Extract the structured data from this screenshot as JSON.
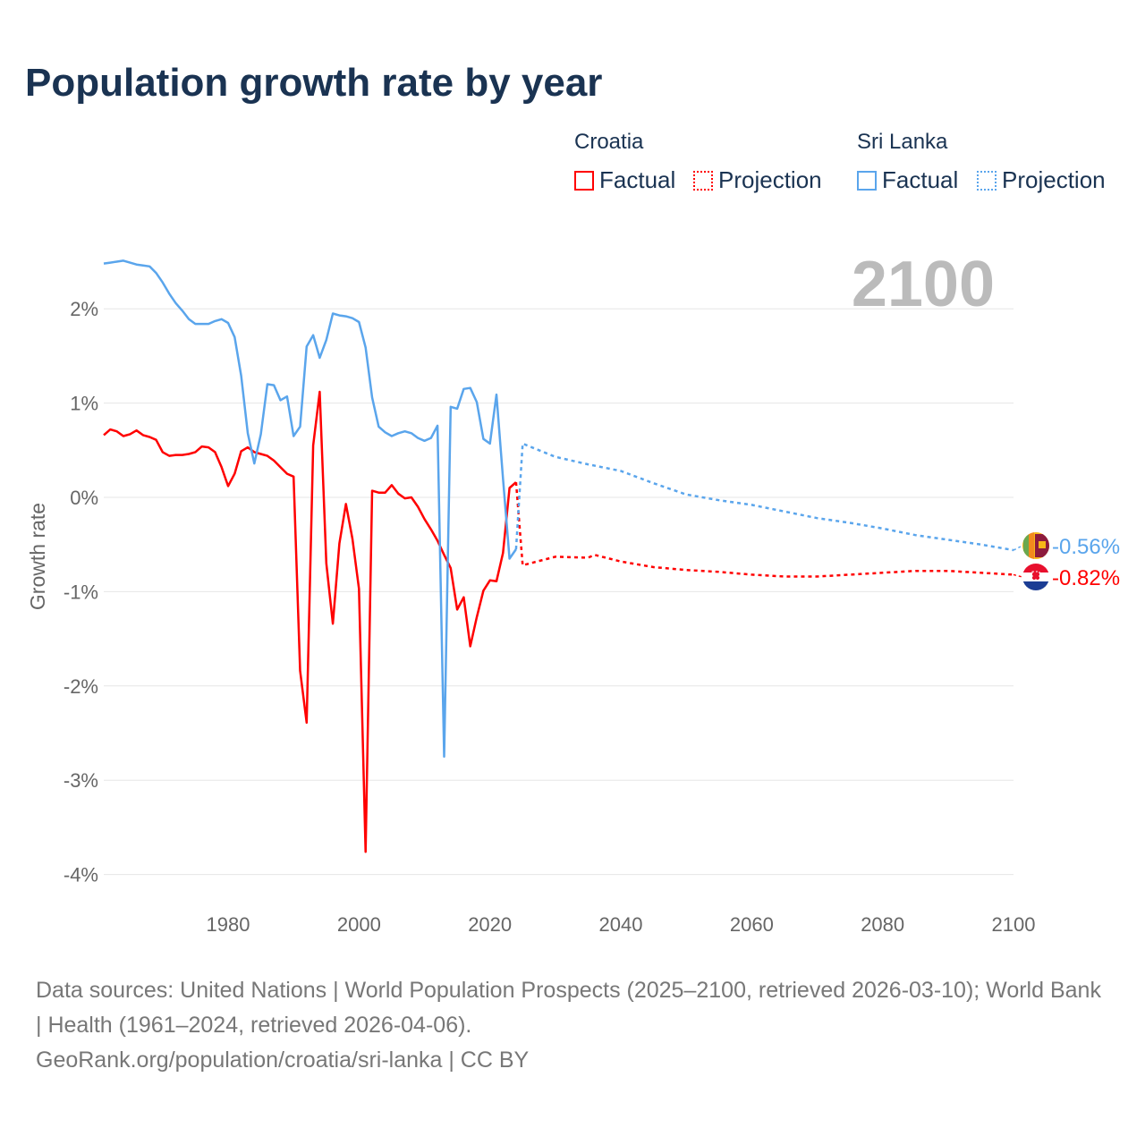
{
  "title": "Population growth rate by year",
  "legend": {
    "groups": [
      {
        "name": "Croatia",
        "color": "#ff0000",
        "factual": "Factual",
        "projection": "Projection"
      },
      {
        "name": "Sri Lanka",
        "color": "#5aa5ec",
        "factual": "Factual",
        "projection": "Projection"
      }
    ]
  },
  "year_label": "2100",
  "footer": {
    "sources": "Data sources: United Nations | World Population Prospects (2025–2100, retrieved 2026-03-10); World Bank | Health (1961–2024, retrieved 2026-04-06).",
    "credit": "GeoRank.org/population/croatia/sri-lanka | CC BY"
  },
  "chart_data": {
    "type": "line",
    "title": "Population growth rate by year",
    "xlabel": "",
    "ylabel": "Growth rate",
    "xlim": [
      1961,
      2100
    ],
    "ylim": [
      -4.3,
      2.5
    ],
    "xticks": [
      1980,
      2000,
      2020,
      2040,
      2060,
      2080,
      2100
    ],
    "yticks": [
      2,
      1,
      0,
      -1,
      -2,
      -3,
      -4
    ],
    "ytick_labels": [
      "2%",
      "1%",
      "0%",
      "-1%",
      "-2%",
      "-3%",
      "-4%"
    ],
    "grid": true,
    "legend_position": "top-right",
    "series": [
      {
        "name": "Croatia",
        "color": "#ff0000",
        "end_label": "-0.82%",
        "flag": "croatia-flag",
        "factual": {
          "x": [
            1961,
            1962,
            1963,
            1964,
            1965,
            1966,
            1967,
            1968,
            1969,
            1970,
            1971,
            1972,
            1973,
            1974,
            1975,
            1976,
            1977,
            1978,
            1979,
            1980,
            1981,
            1982,
            1983,
            1984,
            1985,
            1986,
            1987,
            1988,
            1989,
            1990,
            1991,
            1992,
            1993,
            1994,
            1995,
            1996,
            1997,
            1998,
            1999,
            2000,
            2001,
            2002,
            2003,
            2004,
            2005,
            2006,
            2007,
            2008,
            2009,
            2010,
            2011,
            2012,
            2013,
            2014,
            2015,
            2016,
            2017,
            2018,
            2019,
            2020,
            2021,
            2022,
            2023,
            2024
          ],
          "y": [
            0.66,
            0.72,
            0.7,
            0.65,
            0.67,
            0.71,
            0.66,
            0.64,
            0.61,
            0.48,
            0.44,
            0.45,
            0.45,
            0.46,
            0.48,
            0.54,
            0.53,
            0.48,
            0.32,
            0.12,
            0.25,
            0.49,
            0.53,
            0.48,
            0.46,
            0.44,
            0.39,
            0.32,
            0.25,
            0.22,
            -1.84,
            -2.39,
            0.55,
            1.12,
            -0.7,
            -1.34,
            -0.49,
            -0.07,
            -0.44,
            -0.97,
            -3.76,
            0.07,
            0.05,
            0.05,
            0.13,
            0.04,
            -0.01,
            0.0,
            -0.1,
            -0.23,
            -0.34,
            -0.46,
            -0.61,
            -0.75,
            -1.19,
            -1.06,
            -1.58,
            -1.27,
            -0.99,
            -0.88,
            -0.89,
            -0.59,
            0.1,
            0.16
          ]
        },
        "projection": {
          "x": [
            2024,
            2025,
            2030,
            2035,
            2036,
            2040,
            2045,
            2050,
            2055,
            2060,
            2065,
            2070,
            2075,
            2080,
            2085,
            2090,
            2095,
            2100
          ],
          "y": [
            0.16,
            -0.72,
            -0.63,
            -0.64,
            -0.61,
            -0.68,
            -0.74,
            -0.77,
            -0.79,
            -0.82,
            -0.84,
            -0.84,
            -0.82,
            -0.8,
            -0.78,
            -0.78,
            -0.8,
            -0.82
          ]
        }
      },
      {
        "name": "Sri Lanka",
        "color": "#5aa5ec",
        "end_label": "-0.56%",
        "flag": "sri-lanka-flag",
        "factual": {
          "x": [
            1961,
            1962,
            1963,
            1964,
            1965,
            1966,
            1967,
            1968,
            1969,
            1970,
            1971,
            1972,
            1973,
            1974,
            1975,
            1976,
            1977,
            1978,
            1979,
            1980,
            1981,
            1982,
            1983,
            1984,
            1985,
            1986,
            1987,
            1988,
            1989,
            1990,
            1991,
            1992,
            1993,
            1994,
            1995,
            1996,
            1997,
            1998,
            1999,
            2000,
            2001,
            2002,
            2003,
            2004,
            2005,
            2006,
            2007,
            2008,
            2009,
            2010,
            2011,
            2012,
            2013,
            2014,
            2015,
            2016,
            2017,
            2018,
            2019,
            2020,
            2021,
            2022,
            2023,
            2024
          ],
          "y": [
            2.48,
            2.49,
            2.5,
            2.51,
            2.49,
            2.47,
            2.46,
            2.45,
            2.38,
            2.28,
            2.16,
            2.06,
            1.98,
            1.89,
            1.84,
            1.84,
            1.84,
            1.87,
            1.89,
            1.85,
            1.7,
            1.29,
            0.68,
            0.36,
            0.67,
            1.2,
            1.19,
            1.03,
            1.07,
            0.65,
            0.75,
            1.6,
            1.72,
            1.48,
            1.67,
            1.95,
            1.93,
            1.92,
            1.9,
            1.86,
            1.59,
            1.06,
            0.75,
            0.69,
            0.65,
            0.68,
            0.7,
            0.68,
            0.63,
            0.6,
            0.63,
            0.76,
            -2.75,
            0.96,
            0.94,
            1.15,
            1.16,
            1.01,
            0.62,
            0.57,
            1.09,
            0.2,
            -0.65,
            -0.55
          ]
        },
        "projection": {
          "x": [
            2024,
            2025,
            2030,
            2035,
            2040,
            2045,
            2050,
            2055,
            2060,
            2065,
            2070,
            2075,
            2080,
            2085,
            2090,
            2095,
            2100
          ],
          "y": [
            -0.55,
            0.57,
            0.43,
            0.35,
            0.28,
            0.15,
            0.03,
            -0.03,
            -0.08,
            -0.15,
            -0.22,
            -0.27,
            -0.33,
            -0.4,
            -0.45,
            -0.5,
            -0.56
          ]
        }
      }
    ]
  }
}
